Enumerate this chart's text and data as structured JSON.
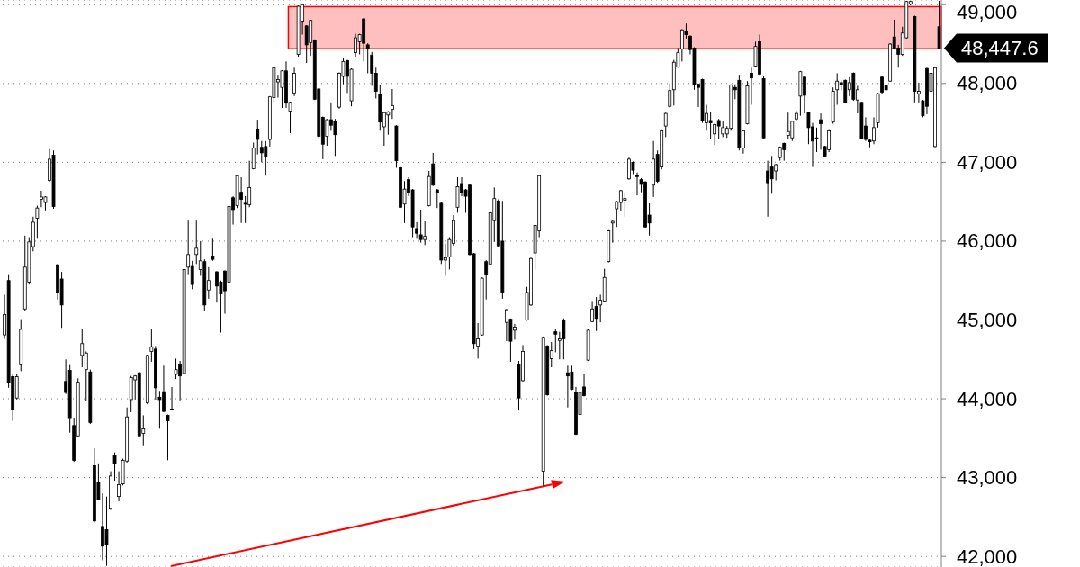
{
  "chart_data": {
    "type": "candlestick",
    "categories": [
      null,
      null,
      null,
      null,
      null,
      null,
      null,
      null,
      null,
      null,
      null,
      null,
      null,
      null,
      null,
      null,
      null,
      null,
      null,
      null,
      null,
      null,
      null,
      null,
      null,
      null,
      null,
      null,
      null,
      null,
      null,
      null,
      null,
      null,
      null,
      null,
      null,
      null,
      null,
      null,
      null,
      null,
      null,
      null,
      null,
      null,
      null,
      null,
      null,
      null,
      null,
      null,
      null,
      null,
      null,
      null,
      null,
      null,
      null,
      null,
      null,
      null,
      null,
      null,
      null,
      null,
      null,
      null,
      null,
      null,
      null,
      null,
      null,
      null,
      null,
      null,
      null,
      null,
      null,
      null,
      null,
      null,
      null,
      null,
      null,
      null,
      null,
      null,
      null,
      null,
      null,
      null,
      null,
      null,
      null,
      null,
      null,
      null,
      null,
      null,
      null,
      null,
      null,
      null,
      null,
      null,
      null,
      null,
      null,
      null,
      null,
      null,
      null,
      null,
      null,
      null,
      null,
      null,
      null,
      null,
      null,
      null,
      null,
      null,
      null,
      null,
      null,
      null,
      null,
      null,
      null,
      null,
      null,
      null,
      null,
      null,
      null,
      null,
      null,
      null,
      null,
      null,
      null,
      null,
      null,
      null,
      null,
      null,
      null,
      null,
      null,
      null,
      null,
      null,
      null,
      null,
      null,
      null,
      null,
      null,
      null,
      null,
      null,
      null,
      null,
      null,
      null,
      null,
      null,
      null,
      null,
      null,
      null,
      null,
      null,
      null,
      null,
      null,
      null,
      null,
      null,
      null,
      null,
      null,
      null,
      null,
      null,
      null,
      null,
      null,
      null,
      null,
      null,
      null,
      null,
      null,
      null,
      null,
      null,
      null,
      null,
      null,
      null,
      null,
      null,
      null,
      null,
      null,
      null,
      null,
      null,
      null,
      null,
      null,
      null,
      null,
      null,
      null,
      null,
      null,
      null,
      null,
      null,
      null,
      null,
      null,
      null,
      null,
      null,
      null
    ],
    "ohlc": [
      [
        44810,
        45320,
        44760,
        45070
      ],
      [
        45500,
        45580,
        44140,
        44200
      ],
      [
        44280,
        44310,
        43720,
        43860
      ],
      [
        44010,
        44310,
        43990,
        44280
      ],
      [
        44440,
        45010,
        44350,
        44880
      ],
      [
        45140,
        46070,
        45110,
        45670
      ],
      [
        45480,
        46050,
        45450,
        45990
      ],
      [
        45930,
        46310,
        45870,
        46240
      ],
      [
        46290,
        46450,
        46030,
        46420
      ],
      [
        46530,
        46640,
        46430,
        46560
      ],
      [
        46490,
        46570,
        46390,
        46560
      ],
      [
        46770,
        47170,
        46750,
        47040
      ],
      [
        47090,
        47150,
        46410,
        46440
      ],
      [
        45700,
        45710,
        45260,
        45350
      ],
      [
        45520,
        45610,
        44900,
        45190
      ],
      [
        44220,
        44500,
        44060,
        44080
      ],
      [
        44360,
        44440,
        43570,
        43760
      ],
      [
        43660,
        43760,
        43200,
        43220
      ],
      [
        43530,
        44260,
        43510,
        44210
      ],
      [
        44550,
        44880,
        44400,
        44700
      ],
      [
        44370,
        44600,
        43970,
        44580
      ],
      [
        44340,
        44370,
        43680,
        43700
      ],
      [
        43150,
        43370,
        42430,
        42450
      ],
      [
        42940,
        43180,
        42710,
        42720
      ],
      [
        42380,
        42800,
        41950,
        42130
      ],
      [
        42340,
        42760,
        41880,
        42150
      ],
      [
        42610,
        43080,
        42590,
        43020
      ],
      [
        43280,
        43320,
        42960,
        43180
      ],
      [
        42760,
        43080,
        42700,
        42910
      ],
      [
        42920,
        43240,
        42900,
        43220
      ],
      [
        43210,
        43890,
        43190,
        43770
      ],
      [
        43990,
        44290,
        43830,
        44270
      ],
      [
        44240,
        44300,
        43990,
        44290
      ],
      [
        44330,
        44340,
        43520,
        43530
      ],
      [
        43560,
        43790,
        43410,
        43620
      ],
      [
        43950,
        44560,
        43930,
        44550
      ],
      [
        44600,
        44880,
        44470,
        44660
      ],
      [
        44630,
        44670,
        43990,
        44140
      ],
      [
        44020,
        44100,
        43620,
        43990
      ],
      [
        44090,
        44420,
        43830,
        43840
      ],
      [
        43790,
        43800,
        43220,
        43720
      ],
      [
        43870,
        44150,
        43850,
        43860
      ],
      [
        44310,
        44510,
        44250,
        44370
      ],
      [
        44440,
        44480,
        43980,
        44290
      ],
      [
        44320,
        45650,
        44310,
        45640
      ],
      [
        45670,
        46260,
        45580,
        45830
      ],
      [
        45690,
        45750,
        45390,
        45450
      ],
      [
        45830,
        46260,
        45710,
        45910
      ],
      [
        45640,
        46000,
        45560,
        45750
      ],
      [
        45740,
        45770,
        45120,
        45190
      ],
      [
        45380,
        45670,
        45270,
        45500
      ],
      [
        45810,
        46030,
        45750,
        45770
      ],
      [
        45610,
        45620,
        45220,
        45430
      ],
      [
        45480,
        45500,
        44840,
        45330
      ],
      [
        45620,
        45630,
        45080,
        45370
      ],
      [
        45480,
        46450,
        45460,
        46440
      ],
      [
        46550,
        46570,
        46210,
        46400
      ],
      [
        46450,
        46840,
        46420,
        46830
      ],
      [
        46620,
        46810,
        46230,
        46530
      ],
      [
        46480,
        46570,
        46230,
        46470
      ],
      [
        46460,
        47020,
        46430,
        46680
      ],
      [
        46920,
        47250,
        46910,
        47180
      ],
      [
        47420,
        47540,
        47100,
        47290
      ],
      [
        47190,
        47270,
        47000,
        47120
      ],
      [
        47200,
        47270,
        46830,
        47070
      ],
      [
        47290,
        47840,
        47200,
        47830
      ],
      [
        47820,
        48210,
        47760,
        48200
      ],
      [
        48020,
        48110,
        47820,
        48050
      ],
      [
        47950,
        48170,
        47690,
        48160
      ],
      [
        48160,
        48280,
        47690,
        47750
      ],
      [
        47650,
        47770,
        47370,
        47760
      ],
      [
        47880,
        48200,
        47840,
        48130
      ],
      [
        48370,
        48990,
        48340,
        48980
      ],
      [
        48790,
        49010,
        48620,
        49000
      ],
      [
        48730,
        48740,
        48260,
        48490
      ],
      [
        48520,
        48810,
        48350,
        48800
      ],
      [
        48550,
        48560,
        47790,
        47800
      ],
      [
        47930,
        47940,
        47310,
        47330
      ],
      [
        47570,
        47580,
        47040,
        47230
      ],
      [
        47330,
        47550,
        47210,
        47540
      ],
      [
        47540,
        47760,
        47400,
        47470
      ],
      [
        47520,
        47550,
        47080,
        47350
      ],
      [
        47700,
        48140,
        47680,
        48130
      ],
      [
        48090,
        48320,
        47990,
        48280
      ],
      [
        48290,
        48300,
        47880,
        48090
      ],
      [
        47780,
        48190,
        47710,
        48180
      ],
      [
        48390,
        48630,
        48340,
        48580
      ],
      [
        48530,
        48630,
        48370,
        48620
      ],
      [
        48820,
        48830,
        48280,
        48510
      ],
      [
        48490,
        48510,
        48130,
        48440
      ],
      [
        48360,
        48400,
        47970,
        48130
      ],
      [
        48130,
        48200,
        47810,
        47900
      ],
      [
        47860,
        47980,
        47400,
        47510
      ],
      [
        47450,
        47640,
        47210,
        47630
      ],
      [
        47600,
        47650,
        47350,
        47640
      ],
      [
        47670,
        47930,
        47550,
        47720
      ],
      [
        47460,
        47470,
        46930,
        47020
      ],
      [
        46930,
        46940,
        46420,
        46430
      ],
      [
        46470,
        46760,
        46230,
        46660
      ],
      [
        46780,
        46810,
        46570,
        46620
      ],
      [
        46650,
        46660,
        46050,
        46180
      ],
      [
        46160,
        46240,
        46030,
        46100
      ],
      [
        46080,
        46400,
        45980,
        46020
      ],
      [
        46020,
        46250,
        45950,
        46060
      ],
      [
        46450,
        46890,
        46440,
        46820
      ],
      [
        46980,
        47120,
        46700,
        46710
      ],
      [
        46650,
        46660,
        46420,
        46610
      ],
      [
        46480,
        46490,
        45710,
        45760
      ],
      [
        45760,
        45970,
        45560,
        45790
      ],
      [
        45800,
        46050,
        45640,
        46020
      ],
      [
        45970,
        46330,
        45940,
        46260
      ],
      [
        46430,
        46810,
        46360,
        46690
      ],
      [
        46730,
        46810,
        46570,
        46620
      ],
      [
        46650,
        46660,
        46360,
        46570
      ],
      [
        46710,
        46720,
        45820,
        45830
      ],
      [
        45840,
        45850,
        44630,
        44700
      ],
      [
        44670,
        44960,
        44510,
        44760
      ],
      [
        44810,
        45540,
        44800,
        45530
      ],
      [
        45740,
        45760,
        45260,
        45580
      ],
      [
        45710,
        46370,
        45700,
        46360
      ],
      [
        46260,
        46680,
        45990,
        46540
      ],
      [
        46510,
        46530,
        45930,
        45940
      ],
      [
        46000,
        46510,
        45270,
        45350
      ],
      [
        44970,
        45140,
        44730,
        45130
      ],
      [
        45010,
        45020,
        44470,
        44730
      ],
      [
        44870,
        44950,
        44750,
        44910
      ],
      [
        44440,
        44480,
        43850,
        44010
      ],
      [
        44230,
        44680,
        44220,
        44600
      ],
      [
        45000,
        45420,
        44990,
        45350
      ],
      [
        45190,
        45790,
        45180,
        45780
      ],
      [
        45850,
        46210,
        45640,
        46200
      ],
      [
        46130,
        46840,
        46050,
        46830
      ],
      [
        43080,
        44790,
        42880,
        44780
      ],
      [
        44670,
        44680,
        44040,
        44050
      ],
      [
        44510,
        44720,
        44400,
        44610
      ],
      [
        44850,
        44890,
        44590,
        44820
      ],
      [
        44740,
        44850,
        44500,
        44760
      ],
      [
        44990,
        45020,
        44500,
        44760
      ],
      [
        44330,
        44420,
        43890,
        44290
      ],
      [
        44340,
        44420,
        44110,
        44120
      ],
      [
        44080,
        44150,
        43540,
        43550
      ],
      [
        43800,
        44250,
        43790,
        44080
      ],
      [
        44150,
        44310,
        44030,
        44040
      ],
      [
        44490,
        44880,
        44480,
        44870
      ],
      [
        44980,
        45240,
        44970,
        45140
      ],
      [
        45170,
        45290,
        44860,
        45020
      ],
      [
        45190,
        45320,
        44970,
        45250
      ],
      [
        45240,
        45650,
        45230,
        45540
      ],
      [
        45740,
        46140,
        45730,
        46130
      ],
      [
        46230,
        46260,
        45980,
        46250
      ],
      [
        46410,
        46510,
        46180,
        46500
      ],
      [
        46490,
        46650,
        46380,
        46640
      ],
      [
        46520,
        46620,
        46310,
        46540
      ],
      [
        46790,
        47060,
        46780,
        47040
      ],
      [
        47000,
        47010,
        46850,
        46900
      ],
      [
        46830,
        46870,
        46580,
        46820
      ],
      [
        46780,
        46800,
        46620,
        46720
      ],
      [
        46750,
        46760,
        46170,
        46180
      ],
      [
        46330,
        46480,
        46070,
        46230
      ],
      [
        46710,
        47270,
        46560,
        47040
      ],
      [
        47100,
        47150,
        46740,
        46760
      ],
      [
        46940,
        47420,
        46910,
        47400
      ],
      [
        47460,
        47630,
        47320,
        47620
      ],
      [
        47710,
        48000,
        47690,
        47910
      ],
      [
        47920,
        48300,
        47720,
        48270
      ],
      [
        48210,
        48450,
        48200,
        48390
      ],
      [
        48440,
        48690,
        48280,
        48680
      ],
      [
        48660,
        48760,
        48570,
        48620
      ],
      [
        48600,
        48610,
        48370,
        48430
      ],
      [
        48450,
        48460,
        47920,
        47990
      ],
      [
        47990,
        48000,
        47700,
        47950
      ],
      [
        48050,
        48060,
        47500,
        47530
      ],
      [
        47500,
        47730,
        47400,
        47620
      ],
      [
        47530,
        47640,
        47290,
        47500
      ],
      [
        47360,
        47490,
        47220,
        47480
      ],
      [
        47530,
        47550,
        47290,
        47460
      ],
      [
        47360,
        47520,
        47320,
        47440
      ],
      [
        47360,
        47460,
        47310,
        47430
      ],
      [
        47430,
        47990,
        47400,
        47980
      ],
      [
        47950,
        47990,
        47800,
        47920
      ],
      [
        48040,
        48110,
        47150,
        47180
      ],
      [
        47180,
        47410,
        47110,
        47400
      ],
      [
        47490,
        48030,
        47480,
        47970
      ],
      [
        48130,
        48200,
        47730,
        48070
      ],
      [
        48220,
        48530,
        48210,
        48470
      ],
      [
        48530,
        48620,
        48110,
        48120
      ],
      [
        48060,
        48090,
        47300,
        47310
      ],
      [
        46890,
        47020,
        46310,
        46740
      ],
      [
        46940,
        47080,
        46600,
        46790
      ],
      [
        46890,
        46980,
        46770,
        46970
      ],
      [
        47060,
        47200,
        47020,
        47190
      ],
      [
        47240,
        47250,
        47020,
        47160
      ],
      [
        47340,
        47630,
        47300,
        47390
      ],
      [
        47310,
        47530,
        47270,
        47520
      ],
      [
        47550,
        47650,
        47530,
        47620
      ],
      [
        47840,
        48160,
        47590,
        48150
      ],
      [
        48080,
        48090,
        47620,
        47850
      ],
      [
        47630,
        47640,
        47230,
        47440
      ],
      [
        47450,
        47500,
        46940,
        47270
      ],
      [
        47310,
        47440,
        47130,
        47300
      ],
      [
        47540,
        47620,
        47160,
        47490
      ],
      [
        47200,
        47210,
        47070,
        47080
      ],
      [
        47160,
        47420,
        47130,
        47400
      ],
      [
        47510,
        47950,
        47490,
        47900
      ],
      [
        47920,
        48130,
        47730,
        48030
      ],
      [
        48010,
        48040,
        47910,
        47990
      ],
      [
        48040,
        48050,
        47750,
        47760
      ],
      [
        47920,
        48080,
        47840,
        48010
      ],
      [
        48130,
        48140,
        47780,
        47800
      ],
      [
        47790,
        47970,
        47620,
        47920
      ],
      [
        47760,
        47770,
        47290,
        47300
      ],
      [
        47460,
        47570,
        47270,
        47290
      ],
      [
        47280,
        47290,
        47190,
        47260
      ],
      [
        47270,
        47570,
        47230,
        47440
      ],
      [
        47500,
        47880,
        47440,
        47870
      ],
      [
        48080,
        48090,
        47870,
        47890
      ],
      [
        47970,
        47990,
        47900,
        47920
      ],
      [
        48030,
        48510,
        48020,
        48500
      ],
      [
        48590,
        48810,
        48430,
        48440
      ],
      [
        48450,
        48490,
        48200,
        48370
      ],
      [
        48370,
        48720,
        48350,
        48640
      ],
      [
        48580,
        49050,
        48570,
        49040
      ],
      [
        49010,
        49050,
        48990,
        49040
      ],
      [
        48850,
        48860,
        47760,
        47900
      ],
      [
        47870,
        48010,
        47760,
        47900
      ],
      [
        47780,
        47790,
        47570,
        47590
      ],
      [
        48190,
        48200,
        47610,
        47710
      ],
      [
        47900,
        48160,
        47890,
        48130
      ],
      [
        47200,
        48210,
        47190,
        48200
      ],
      [
        48720,
        49050,
        48440,
        48447.6
      ]
    ],
    "color": "#000000",
    "ylim": [
      41865,
      49060
    ],
    "yticks": [
      {
        "value": 42000,
        "label": "42,000"
      },
      {
        "value": 43000,
        "label": "43,000"
      },
      {
        "value": 44000,
        "label": "44,000"
      },
      {
        "value": 45000,
        "label": "45,000"
      },
      {
        "value": 46000,
        "label": "46,000"
      },
      {
        "value": 47000,
        "label": "47,000"
      },
      {
        "value": 48000,
        "label": "48,000"
      },
      {
        "value": 49000,
        "label": "49,000"
      }
    ],
    "grid": "y",
    "tick_labels": "y",
    "bands": [
      {
        "axis": "y",
        "from": 48440,
        "to": 48975,
        "color": "#ff0000"
      }
    ],
    "annotations": [
      "48,447.6"
    ]
  }
}
